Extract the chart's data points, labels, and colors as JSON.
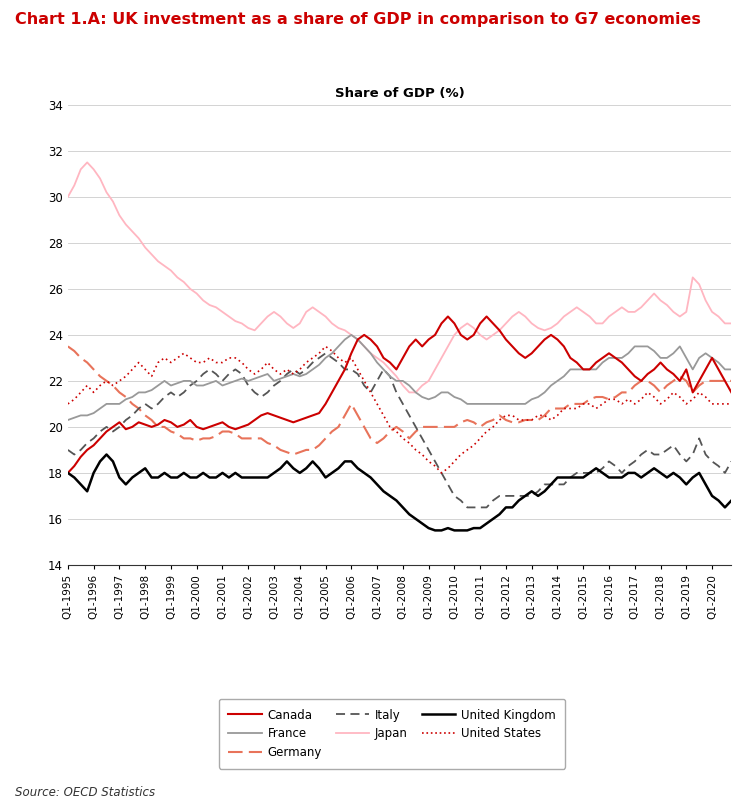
{
  "title": "Chart 1.A: UK investment as a share of GDP in comparison to G7 economies",
  "ylabel": "Share of GDP (%)",
  "source": "Source: OECD Statistics",
  "ylim": [
    14,
    34
  ],
  "yticks": [
    14,
    16,
    18,
    20,
    22,
    24,
    26,
    28,
    30,
    32,
    34
  ],
  "title_color": "#CC0000",
  "canada": [
    18.0,
    18.3,
    18.7,
    19.0,
    19.2,
    19.5,
    19.8,
    20.0,
    20.2,
    19.9,
    20.0,
    20.2,
    20.1,
    20.0,
    20.1,
    20.3,
    20.2,
    20.0,
    20.1,
    20.3,
    20.0,
    19.9,
    20.0,
    20.1,
    20.2,
    20.0,
    19.9,
    20.0,
    20.1,
    20.3,
    20.5,
    20.6,
    20.5,
    20.4,
    20.3,
    20.2,
    20.3,
    20.4,
    20.5,
    20.6,
    21.0,
    21.5,
    22.0,
    22.5,
    23.2,
    23.8,
    24.0,
    23.8,
    23.5,
    23.0,
    22.8,
    22.5,
    23.0,
    23.5,
    23.8,
    23.5,
    23.8,
    24.0,
    24.5,
    24.8,
    24.5,
    24.0,
    23.8,
    24.0,
    24.5,
    24.8,
    24.5,
    24.2,
    23.8,
    23.5,
    23.2,
    23.0,
    23.2,
    23.5,
    23.8,
    24.0,
    23.8,
    23.5,
    23.0,
    22.8,
    22.5,
    22.5,
    22.8,
    23.0,
    23.2,
    23.0,
    22.8,
    22.5,
    22.2,
    22.0,
    22.3,
    22.5,
    22.8,
    22.5,
    22.3,
    22.0,
    22.5,
    21.5,
    22.0,
    22.5,
    23.0,
    22.5,
    22.0,
    21.5
  ],
  "france": [
    20.3,
    20.4,
    20.5,
    20.5,
    20.6,
    20.8,
    21.0,
    21.0,
    21.0,
    21.2,
    21.3,
    21.5,
    21.5,
    21.6,
    21.8,
    22.0,
    21.8,
    21.9,
    22.0,
    22.0,
    21.8,
    21.8,
    21.9,
    22.0,
    21.8,
    21.9,
    22.0,
    22.1,
    22.0,
    22.1,
    22.2,
    22.3,
    22.0,
    22.1,
    22.2,
    22.3,
    22.2,
    22.3,
    22.5,
    22.7,
    23.0,
    23.2,
    23.5,
    23.8,
    24.0,
    23.8,
    23.5,
    23.2,
    22.8,
    22.5,
    22.2,
    22.0,
    22.0,
    21.8,
    21.5,
    21.3,
    21.2,
    21.3,
    21.5,
    21.5,
    21.3,
    21.2,
    21.0,
    21.0,
    21.0,
    21.0,
    21.0,
    21.0,
    21.0,
    21.0,
    21.0,
    21.0,
    21.2,
    21.3,
    21.5,
    21.8,
    22.0,
    22.2,
    22.5,
    22.5,
    22.5,
    22.5,
    22.5,
    22.8,
    23.0,
    23.0,
    23.0,
    23.2,
    23.5,
    23.5,
    23.5,
    23.3,
    23.0,
    23.0,
    23.2,
    23.5,
    23.0,
    22.5,
    23.0,
    23.2,
    23.0,
    22.8,
    22.5,
    22.5
  ],
  "germany": [
    23.5,
    23.3,
    23.0,
    22.8,
    22.5,
    22.2,
    22.0,
    21.8,
    21.5,
    21.3,
    21.0,
    20.8,
    20.5,
    20.3,
    20.0,
    20.0,
    19.8,
    19.7,
    19.5,
    19.5,
    19.4,
    19.5,
    19.5,
    19.6,
    19.8,
    19.8,
    19.7,
    19.5,
    19.5,
    19.5,
    19.5,
    19.3,
    19.2,
    19.0,
    18.9,
    18.8,
    18.9,
    19.0,
    19.0,
    19.2,
    19.5,
    19.8,
    20.0,
    20.5,
    21.0,
    20.5,
    20.0,
    19.5,
    19.3,
    19.5,
    19.8,
    20.0,
    19.8,
    19.5,
    19.8,
    20.0,
    20.0,
    20.0,
    20.0,
    20.0,
    20.0,
    20.2,
    20.3,
    20.2,
    20.0,
    20.2,
    20.3,
    20.5,
    20.3,
    20.2,
    20.2,
    20.3,
    20.3,
    20.3,
    20.5,
    20.8,
    20.8,
    20.8,
    21.0,
    21.0,
    21.0,
    21.2,
    21.3,
    21.3,
    21.2,
    21.3,
    21.5,
    21.5,
    21.8,
    22.0,
    22.0,
    21.8,
    21.5,
    21.8,
    22.0,
    22.2,
    22.0,
    21.5,
    21.8,
    22.0,
    22.0,
    22.0,
    22.0,
    22.0
  ],
  "italy": [
    19.0,
    18.8,
    19.0,
    19.3,
    19.5,
    19.8,
    20.0,
    19.8,
    20.0,
    20.3,
    20.5,
    20.8,
    21.0,
    20.8,
    21.0,
    21.3,
    21.5,
    21.3,
    21.5,
    21.8,
    22.0,
    22.3,
    22.5,
    22.3,
    22.0,
    22.3,
    22.5,
    22.3,
    21.8,
    21.5,
    21.3,
    21.5,
    21.8,
    22.0,
    22.3,
    22.5,
    22.3,
    22.5,
    22.8,
    23.0,
    23.2,
    23.0,
    22.8,
    22.5,
    22.5,
    22.3,
    21.8,
    21.5,
    22.0,
    22.5,
    22.2,
    21.5,
    21.0,
    20.5,
    20.0,
    19.5,
    19.0,
    18.5,
    18.0,
    17.5,
    17.0,
    16.8,
    16.5,
    16.5,
    16.5,
    16.5,
    16.8,
    17.0,
    17.0,
    17.0,
    17.0,
    17.0,
    17.0,
    17.2,
    17.5,
    17.5,
    17.5,
    17.5,
    17.8,
    18.0,
    18.0,
    18.0,
    18.0,
    18.2,
    18.5,
    18.3,
    18.0,
    18.3,
    18.5,
    18.8,
    19.0,
    18.8,
    18.8,
    19.0,
    19.2,
    18.8,
    18.5,
    18.8,
    19.5,
    18.8,
    18.5,
    18.3,
    18.0,
    18.5
  ],
  "japan": [
    30.0,
    30.5,
    31.2,
    31.5,
    31.2,
    30.8,
    30.2,
    29.8,
    29.2,
    28.8,
    28.5,
    28.2,
    27.8,
    27.5,
    27.2,
    27.0,
    26.8,
    26.5,
    26.3,
    26.0,
    25.8,
    25.5,
    25.3,
    25.2,
    25.0,
    24.8,
    24.6,
    24.5,
    24.3,
    24.2,
    24.5,
    24.8,
    25.0,
    24.8,
    24.5,
    24.3,
    24.5,
    25.0,
    25.2,
    25.0,
    24.8,
    24.5,
    24.3,
    24.2,
    24.0,
    23.8,
    23.5,
    23.2,
    23.0,
    22.8,
    22.5,
    22.2,
    21.8,
    21.5,
    21.5,
    21.8,
    22.0,
    22.5,
    23.0,
    23.5,
    24.0,
    24.3,
    24.5,
    24.3,
    24.0,
    23.8,
    24.0,
    24.2,
    24.5,
    24.8,
    25.0,
    24.8,
    24.5,
    24.3,
    24.2,
    24.3,
    24.5,
    24.8,
    25.0,
    25.2,
    25.0,
    24.8,
    24.5,
    24.5,
    24.8,
    25.0,
    25.2,
    25.0,
    25.0,
    25.2,
    25.5,
    25.8,
    25.5,
    25.3,
    25.0,
    24.8,
    25.0,
    26.5,
    26.2,
    25.5,
    25.0,
    24.8,
    24.5,
    24.5
  ],
  "uk": [
    18.0,
    17.8,
    17.5,
    17.2,
    18.0,
    18.5,
    18.8,
    18.5,
    17.8,
    17.5,
    17.8,
    18.0,
    18.2,
    17.8,
    17.8,
    18.0,
    17.8,
    17.8,
    18.0,
    17.8,
    17.8,
    18.0,
    17.8,
    17.8,
    18.0,
    17.8,
    18.0,
    17.8,
    17.8,
    17.8,
    17.8,
    17.8,
    18.0,
    18.2,
    18.5,
    18.2,
    18.0,
    18.2,
    18.5,
    18.2,
    17.8,
    18.0,
    18.2,
    18.5,
    18.5,
    18.2,
    18.0,
    17.8,
    17.5,
    17.2,
    17.0,
    16.8,
    16.5,
    16.2,
    16.0,
    15.8,
    15.6,
    15.5,
    15.5,
    15.6,
    15.5,
    15.5,
    15.5,
    15.6,
    15.6,
    15.8,
    16.0,
    16.2,
    16.5,
    16.5,
    16.8,
    17.0,
    17.2,
    17.0,
    17.2,
    17.5,
    17.8,
    17.8,
    17.8,
    17.8,
    17.8,
    18.0,
    18.2,
    18.0,
    17.8,
    17.8,
    17.8,
    18.0,
    18.0,
    17.8,
    18.0,
    18.2,
    18.0,
    17.8,
    18.0,
    17.8,
    17.5,
    17.8,
    18.0,
    17.5,
    17.0,
    16.8,
    16.5,
    16.8
  ],
  "us": [
    21.0,
    21.2,
    21.5,
    21.8,
    21.5,
    21.8,
    22.0,
    21.8,
    22.0,
    22.2,
    22.5,
    22.8,
    22.5,
    22.2,
    22.8,
    23.0,
    22.8,
    23.0,
    23.2,
    23.0,
    22.8,
    22.8,
    23.0,
    22.8,
    22.8,
    23.0,
    23.0,
    22.8,
    22.5,
    22.3,
    22.5,
    22.8,
    22.5,
    22.3,
    22.5,
    22.3,
    22.5,
    22.8,
    23.0,
    23.2,
    23.5,
    23.3,
    23.0,
    22.8,
    23.0,
    22.5,
    22.0,
    21.5,
    21.0,
    20.5,
    20.0,
    19.8,
    19.5,
    19.3,
    19.0,
    18.8,
    18.5,
    18.3,
    18.0,
    18.2,
    18.5,
    18.8,
    19.0,
    19.2,
    19.5,
    19.8,
    20.0,
    20.3,
    20.5,
    20.5,
    20.3,
    20.3,
    20.3,
    20.5,
    20.5,
    20.3,
    20.5,
    20.8,
    20.8,
    20.8,
    21.0,
    21.0,
    20.8,
    21.0,
    21.2,
    21.2,
    21.0,
    21.2,
    21.0,
    21.2,
    21.5,
    21.3,
    21.0,
    21.2,
    21.5,
    21.3,
    21.0,
    21.2,
    21.5,
    21.3,
    21.0,
    21.0,
    21.0,
    21.0
  ]
}
